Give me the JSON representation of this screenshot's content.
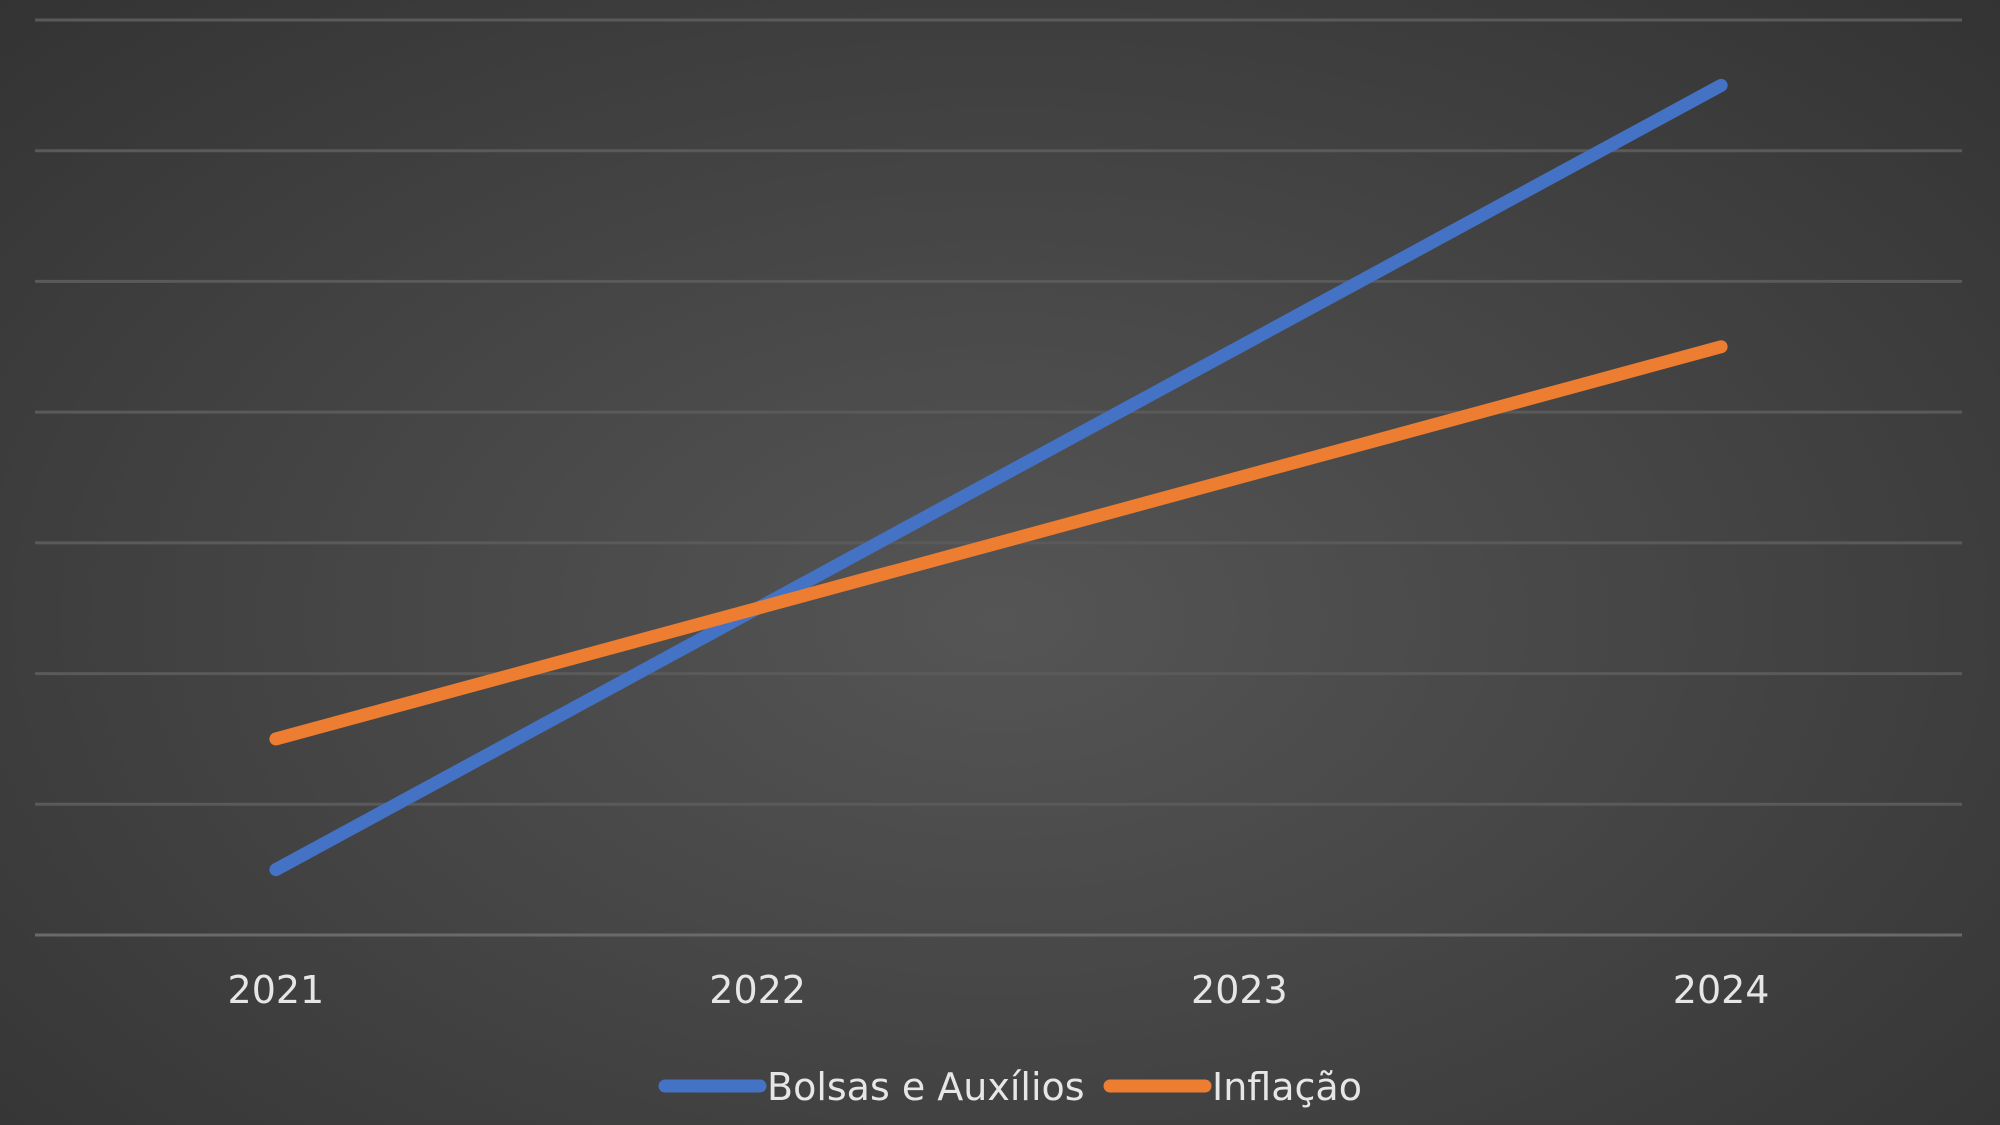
{
  "chart_data": {
    "type": "line",
    "title": "",
    "xlabel": "",
    "ylabel": "",
    "categories": [
      "2021",
      "2022",
      "2023",
      "2024"
    ],
    "ylim": [
      0,
      7
    ],
    "grid": true,
    "legend_position": "bottom",
    "series": [
      {
        "name": "Bolsas e Auxílios",
        "color": "#4472c4",
        "values": [
          0.5,
          2.5,
          4.5,
          6.5
        ]
      },
      {
        "name": "Inflação",
        "color": "#ed7d31",
        "values": [
          1.5,
          2.5,
          3.5,
          4.5
        ]
      }
    ]
  }
}
